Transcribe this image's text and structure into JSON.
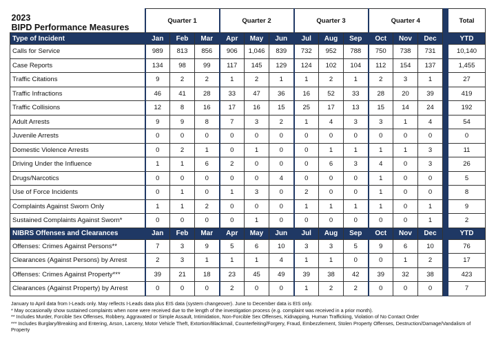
{
  "title": {
    "year": "2023",
    "name": "BIPD Performance Measures"
  },
  "quarters": [
    "Quarter 1",
    "Quarter 2",
    "Quarter 3",
    "Quarter 4"
  ],
  "total_header": "Total",
  "sections": [
    {
      "header": "Type of Incident",
      "months": [
        "Jan",
        "Feb",
        "Mar",
        "Apr",
        "May",
        "Jun",
        "Jul",
        "Aug",
        "Sep",
        "Oct",
        "Nov",
        "Dec"
      ],
      "ytd": "YTD",
      "rows": [
        {
          "label": "Calls for Service",
          "values": [
            "989",
            "813",
            "856",
            "906",
            "1,046",
            "839",
            "732",
            "952",
            "788",
            "750",
            "738",
            "731"
          ],
          "ytd": "10,140"
        },
        {
          "label": "Case Reports",
          "values": [
            "134",
            "98",
            "99",
            "117",
            "145",
            "129",
            "124",
            "102",
            "104",
            "112",
            "154",
            "137"
          ],
          "ytd": "1,455"
        },
        {
          "label": "Traffic Citations",
          "values": [
            "9",
            "2",
            "2",
            "1",
            "2",
            "1",
            "1",
            "2",
            "1",
            "2",
            "3",
            "1"
          ],
          "ytd": "27"
        },
        {
          "label": "Traffic Infractions",
          "values": [
            "46",
            "41",
            "28",
            "33",
            "47",
            "36",
            "16",
            "52",
            "33",
            "28",
            "20",
            "39"
          ],
          "ytd": "419"
        },
        {
          "label": "Traffic Collisions",
          "values": [
            "12",
            "8",
            "16",
            "17",
            "16",
            "15",
            "25",
            "17",
            "13",
            "15",
            "14",
            "24"
          ],
          "ytd": "192"
        },
        {
          "label": "Adult Arrests",
          "values": [
            "9",
            "9",
            "8",
            "7",
            "3",
            "2",
            "1",
            "4",
            "3",
            "3",
            "1",
            "4"
          ],
          "ytd": "54"
        },
        {
          "label": "Juvenile Arrests",
          "values": [
            "0",
            "0",
            "0",
            "0",
            "0",
            "0",
            "0",
            "0",
            "0",
            "0",
            "0",
            "0"
          ],
          "ytd": "0"
        },
        {
          "label": "Domestic Violence Arrests",
          "values": [
            "0",
            "2",
            "1",
            "0",
            "1",
            "0",
            "0",
            "1",
            "1",
            "1",
            "1",
            "3"
          ],
          "ytd": "11"
        },
        {
          "label": "Driving Under the Influence",
          "values": [
            "1",
            "1",
            "6",
            "2",
            "0",
            "0",
            "0",
            "6",
            "3",
            "4",
            "0",
            "3"
          ],
          "ytd": "26"
        },
        {
          "label": "Drugs/Narcotics",
          "values": [
            "0",
            "0",
            "0",
            "0",
            "0",
            "4",
            "0",
            "0",
            "0",
            "1",
            "0",
            "0"
          ],
          "ytd": "5"
        },
        {
          "label": "Use of Force Incidents",
          "values": [
            "0",
            "1",
            "0",
            "1",
            "3",
            "0",
            "2",
            "0",
            "0",
            "1",
            "0",
            "0"
          ],
          "ytd": "8"
        },
        {
          "label": "Complaints Against Sworn Only",
          "values": [
            "1",
            "1",
            "2",
            "0",
            "0",
            "0",
            "1",
            "1",
            "1",
            "1",
            "0",
            "1"
          ],
          "ytd": "9"
        },
        {
          "label": "Sustained Complaints Against Sworn*",
          "values": [
            "0",
            "0",
            "0",
            "0",
            "1",
            "0",
            "0",
            "0",
            "0",
            "0",
            "0",
            "1"
          ],
          "ytd": "2"
        }
      ]
    },
    {
      "header": "NIBRS Offenses and Clearances",
      "months": [
        "Jan",
        "Feb",
        "Mar",
        "Apr",
        "May",
        "Jun",
        "Jul",
        "Aug",
        "Sep",
        "Oct",
        "Nov",
        "Dec"
      ],
      "ytd": "YTD",
      "rows": [
        {
          "label": "Offenses: Crimes Against Persons**",
          "values": [
            "7",
            "3",
            "9",
            "5",
            "6",
            "10",
            "3",
            "3",
            "5",
            "9",
            "6",
            "10"
          ],
          "ytd": "76"
        },
        {
          "label": "Clearances (Against Persons) by Arrest",
          "values": [
            "2",
            "3",
            "1",
            "1",
            "1",
            "4",
            "1",
            "1",
            "0",
            "0",
            "1",
            "2"
          ],
          "ytd": "17"
        },
        {
          "label": "Offenses: Crimes Against Property***",
          "values": [
            "39",
            "21",
            "18",
            "23",
            "45",
            "49",
            "39",
            "38",
            "42",
            "39",
            "32",
            "38"
          ],
          "ytd": "423"
        },
        {
          "label": "Clearances (Against Property) by Arrest",
          "values": [
            "0",
            "0",
            "0",
            "2",
            "0",
            "0",
            "1",
            "2",
            "2",
            "0",
            "0",
            "0"
          ],
          "ytd": "7"
        }
      ]
    }
  ],
  "footnotes": [
    "January to April data from I-Leads only. May reflects I-Leads data plus EIS data (system changeover). June to December data is EIS only.",
    "* May occasionally show sustained complaints when none were received due to the length of the investigation process (e.g. complaint was received in a prior month).",
    "** Includes Murder, Forcible Sex Offenses, Robbery, Aggravated or Simple Assault, Intimidation, Non-Forcible Sex Offenses, Kidnapping, Human Trafficking, Violation of No Contact Order",
    "*** Includes Burglary/Breaking and Entering, Arson, Larceny, Motor Vehicle Theft, Extortion/Blackmail, Counterfeiting/Forgery, Fraud, Embezzlement, Stolen Property Offenses, Destruction/Damage/Vandalism of Property"
  ]
}
